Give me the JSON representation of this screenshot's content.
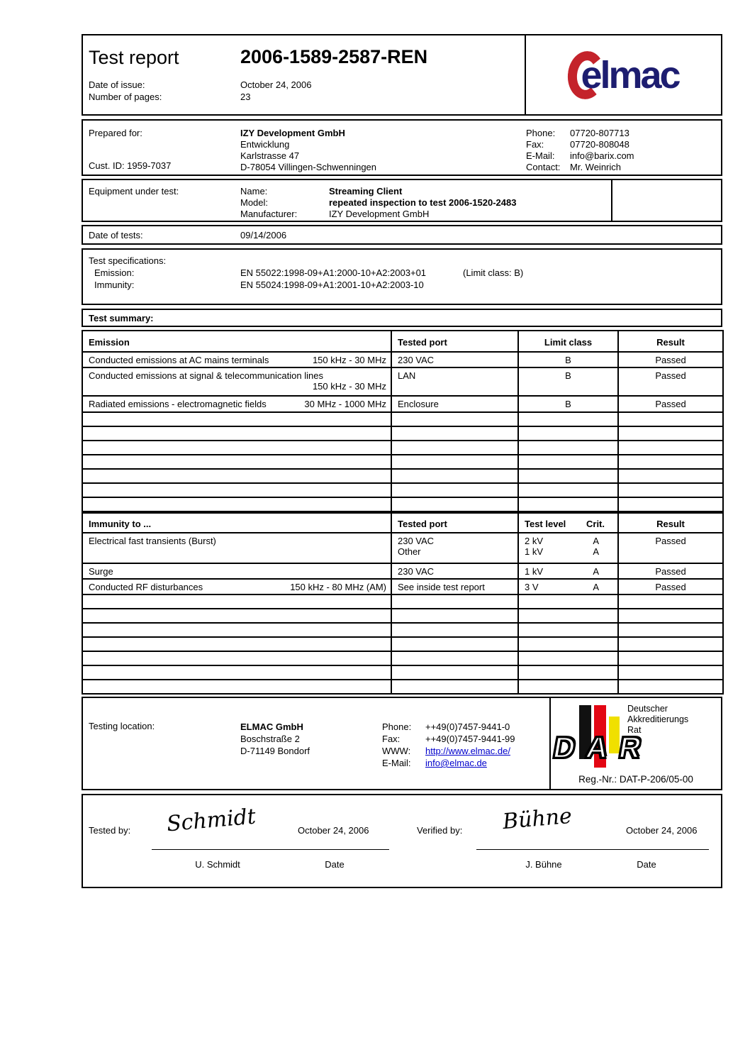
{
  "header": {
    "title": "Test report",
    "report_number": "2006-1589-2587-REN",
    "date_of_issue_label": "Date of issue:",
    "date_of_issue": "October 24, 2006",
    "pages_label": "Number of pages:",
    "pages": "23",
    "logo_text": "elmac"
  },
  "prepared_for": {
    "label": "Prepared for:",
    "company": "IZY Development GmbH",
    "department": "Entwicklung",
    "street": "Karlstrasse 47",
    "city": "D-78054 Villingen-Schwenningen",
    "cust_id": "Cust. ID: 1959-7037",
    "phone_label": "Phone:",
    "phone": "07720-807713",
    "fax_label": "Fax:",
    "fax": "07720-808048",
    "email_label": "E-Mail:",
    "email": "info@barix.com",
    "contact_label": "Contact:",
    "contact": "Mr. Weinrich"
  },
  "equipment": {
    "label": "Equipment under test:",
    "name_label": "Name:",
    "name": "Streaming Client",
    "model_label": "Model:",
    "model": "repeated inspection to test 2006-1520-2483",
    "manufacturer_label": "Manufacturer:",
    "manufacturer": "IZY Development GmbH"
  },
  "date_of_tests": {
    "label": "Date of tests:",
    "value": "09/14/2006"
  },
  "test_specifications": {
    "label": "Test specifications:",
    "emission_label": "Emission:",
    "emission": "EN 55022:1998-09+A1:2000-10+A2:2003+01",
    "emission_note": "(Limit class: B)",
    "immunity_label": "Immunity:",
    "immunity": "EN 55024:1998-09+A1:2001-10+A2:2003-10"
  },
  "test_summary_label": "Test summary:",
  "emission_table": {
    "headers": [
      "Emission",
      "Tested port",
      "Limit class",
      "Result"
    ],
    "rows": [
      {
        "name": "Conducted emissions at AC mains terminals",
        "range": "150 kHz - 30 MHz",
        "port": "230 VAC",
        "limit": "B",
        "result": "Passed"
      },
      {
        "name": "Conducted emissions at signal & telecommunication lines",
        "range": "150 kHz - 30 MHz",
        "port": "LAN",
        "limit": "B",
        "result": "Passed"
      },
      {
        "name": "Radiated emissions - electromagnetic fields",
        "range": "30 MHz - 1000 MHz",
        "port": "Enclosure",
        "limit": "B",
        "result": "Passed"
      }
    ],
    "empty_rows": 7
  },
  "immunity_table": {
    "headers": [
      "Immunity to ...",
      "Tested port",
      "Test level",
      "Crit.",
      "Result"
    ],
    "rows": [
      {
        "name": "Electrical fast transients (Burst)",
        "range": "",
        "ports": [
          "230 VAC",
          "Other"
        ],
        "levels": [
          "2 kV",
          "1 kV"
        ],
        "crits": [
          "A",
          "A"
        ],
        "result": "Passed"
      },
      {
        "name": "Surge",
        "range": "",
        "ports": [
          "230 VAC"
        ],
        "levels": [
          "1 kV"
        ],
        "crits": [
          "A"
        ],
        "result": "Passed"
      },
      {
        "name": "Conducted RF disturbances",
        "range": "150 kHz - 80 MHz (AM)",
        "ports": [
          "See inside test report"
        ],
        "levels": [
          "3 V"
        ],
        "crits": [
          "A"
        ],
        "result": "Passed"
      }
    ],
    "empty_rows": 7
  },
  "testing_location": {
    "label": "Testing location:",
    "company": "ELMAC GmbH",
    "street": "Boschstraße 2",
    "city": "D-71149 Bondorf",
    "phone_label": "Phone:",
    "phone": "++49(0)7457-9441-0",
    "fax_label": "Fax:",
    "fax": "++49(0)7457-9441-99",
    "www_label": "WWW:",
    "www": "http://www.elmac.de/",
    "email_label": "E-Mail:",
    "email": "info@elmac.de"
  },
  "accreditation": {
    "line1": "Deutscher",
    "line2": "Akkreditierungs",
    "line3": "Rat",
    "letters": "DAR",
    "reg_nr": "Reg.-Nr.: DAT-P-206/05-00"
  },
  "signatures": {
    "tested_by_label": "Tested by:",
    "tested_signature": "Schmidt",
    "tested_date": "October 24, 2006",
    "tested_name": "U. Schmidt",
    "tested_date_label": "Date",
    "verified_by_label": "Verified by:",
    "verified_signature": "Bühne",
    "verified_date": "October 24, 2006",
    "verified_name": "J. Bühne",
    "verified_date_label": "Date"
  },
  "colors": {
    "logo_navy": "#1d1d70",
    "logo_red": "#c4232b",
    "dar_black": "#111111",
    "dar_red": "#e30613",
    "dar_yellow": "#f0e000",
    "link_blue": "#0000cc"
  }
}
